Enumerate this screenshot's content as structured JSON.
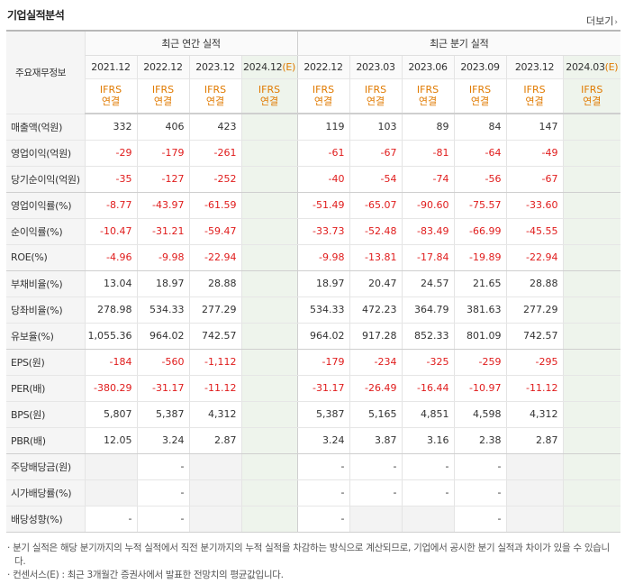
{
  "header": {
    "title": "기업실적분석",
    "more_label": "더보기",
    "more_arrow": "›"
  },
  "table": {
    "corner_label": "주요재무정보",
    "annual_label": "최근 연간 실적",
    "quarter_label": "최근 분기 실적",
    "periods": [
      {
        "label": "2021.12",
        "estimate": false
      },
      {
        "label": "2022.12",
        "estimate": false
      },
      {
        "label": "2023.12",
        "estimate": false
      },
      {
        "label": "2024.12",
        "estimate": true
      },
      {
        "label": "2022.12",
        "estimate": false
      },
      {
        "label": "2023.03",
        "estimate": false
      },
      {
        "label": "2023.06",
        "estimate": false
      },
      {
        "label": "2023.09",
        "estimate": false
      },
      {
        "label": "2023.12",
        "estimate": false
      },
      {
        "label": "2024.03",
        "estimate": true
      }
    ],
    "estimate_mark": "(E)",
    "standard": [
      "IFRS",
      "연결"
    ],
    "rows": [
      {
        "label": "매출액(억원)",
        "values": [
          "332",
          "406",
          "423",
          "",
          "119",
          "103",
          "89",
          "84",
          "147",
          ""
        ]
      },
      {
        "label": "영업이익(억원)",
        "values": [
          "-29",
          "-179",
          "-261",
          "",
          "-61",
          "-67",
          "-81",
          "-64",
          "-49",
          ""
        ]
      },
      {
        "label": "당기순이익(억원)",
        "values": [
          "-35",
          "-127",
          "-252",
          "",
          "-40",
          "-54",
          "-74",
          "-56",
          "-67",
          ""
        ]
      },
      {
        "label": "영업이익률(%)",
        "values": [
          "-8.77",
          "-43.97",
          "-61.59",
          "",
          "-51.49",
          "-65.07",
          "-90.60",
          "-75.57",
          "-33.60",
          ""
        ]
      },
      {
        "label": "순이익률(%)",
        "values": [
          "-10.47",
          "-31.21",
          "-59.47",
          "",
          "-33.73",
          "-52.48",
          "-83.49",
          "-66.99",
          "-45.55",
          ""
        ]
      },
      {
        "label": "ROE(%)",
        "values": [
          "-4.96",
          "-9.98",
          "-22.94",
          "",
          "-9.98",
          "-13.81",
          "-17.84",
          "-19.89",
          "-22.94",
          ""
        ]
      },
      {
        "label": "부채비율(%)",
        "values": [
          "13.04",
          "18.97",
          "28.88",
          "",
          "18.97",
          "20.47",
          "24.57",
          "21.65",
          "28.88",
          ""
        ]
      },
      {
        "label": "당좌비율(%)",
        "values": [
          "278.98",
          "534.33",
          "277.29",
          "",
          "534.33",
          "472.23",
          "364.79",
          "381.63",
          "277.29",
          ""
        ]
      },
      {
        "label": "유보율(%)",
        "values": [
          "1,055.36",
          "964.02",
          "742.57",
          "",
          "964.02",
          "917.28",
          "852.33",
          "801.09",
          "742.57",
          ""
        ]
      },
      {
        "label": "EPS(원)",
        "values": [
          "-184",
          "-560",
          "-1,112",
          "",
          "-179",
          "-234",
          "-325",
          "-259",
          "-295",
          ""
        ]
      },
      {
        "label": "PER(배)",
        "values": [
          "-380.29",
          "-31.17",
          "-11.12",
          "",
          "-31.17",
          "-26.49",
          "-16.44",
          "-10.97",
          "-11.12",
          ""
        ]
      },
      {
        "label": "BPS(원)",
        "values": [
          "5,807",
          "5,387",
          "4,312",
          "",
          "5,387",
          "5,165",
          "4,851",
          "4,598",
          "4,312",
          ""
        ]
      },
      {
        "label": "PBR(배)",
        "values": [
          "12.05",
          "3.24",
          "2.87",
          "",
          "3.24",
          "3.87",
          "3.16",
          "2.38",
          "2.87",
          ""
        ]
      },
      {
        "label": "주당배당금(원)",
        "values": [
          "",
          "-",
          "",
          "",
          "-",
          "-",
          "-",
          "-",
          "",
          ""
        ],
        "gray": [
          0,
          2,
          8
        ]
      },
      {
        "label": "시가배당률(%)",
        "values": [
          "",
          "-",
          "",
          "",
          "-",
          "-",
          "-",
          "-",
          "",
          ""
        ],
        "gray": [
          0,
          2,
          8
        ]
      },
      {
        "label": "배당성향(%)",
        "values": [
          "-",
          "-",
          "",
          "",
          "-",
          "",
          "",
          "-",
          "",
          ""
        ],
        "gray": [
          2,
          5,
          6,
          8
        ]
      }
    ]
  },
  "notes": [
    "· 분기 실적은 해당 분기까지의 누적 실적에서 직전 분기까지의 누적 실적을 차감하는 방식으로 계산되므로, 기업에서 공시한 분기 실적과 차이가 있을 수 있습니다.",
    "· 컨센서스(E) : 최근 3개월간 증권사에서 발표한 전망치의 평균값입니다."
  ],
  "colors": {
    "negative": "#e01c1c",
    "accent": "#e07a00",
    "forecast_bg": "#eef4ec"
  }
}
